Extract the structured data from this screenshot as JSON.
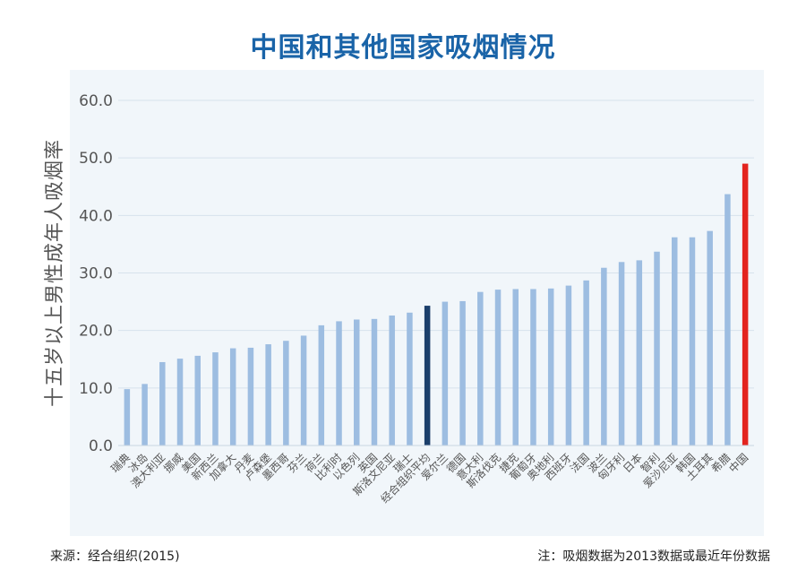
{
  "title": "中国和其他国家吸烟情况",
  "source": "来源：经合组织(2015)",
  "note": "注：吸烟数据为2013数据或最近年份数据",
  "colors": {
    "default": "#9dbde1",
    "oecd": "#1b3f6b",
    "china": "#e3241f",
    "title": "#1a64a8"
  },
  "chart_data": {
    "type": "bar",
    "title": "中国和其他国家吸烟情况",
    "xlabel": "",
    "ylabel": "十五岁以上男性成年人吸烟率",
    "ylim": [
      0,
      60
    ],
    "yticks": [
      "0.0",
      "10.0",
      "20.0",
      "30.0",
      "40.0",
      "50.0",
      "60.0"
    ],
    "grid": true,
    "categories": [
      "瑞典",
      "冰岛",
      "澳大利亚",
      "挪威",
      "美国",
      "新西兰",
      "加拿大",
      "丹麦",
      "卢森堡",
      "墨西哥",
      "芬兰",
      "荷兰",
      "比利时",
      "以色列",
      "英国",
      "斯洛文尼亚",
      "瑞士",
      "经合组织平均",
      "爱尔兰",
      "德国",
      "意大利",
      "斯洛伐克",
      "捷克",
      "葡萄牙",
      "奥地利",
      "西班牙",
      "法国",
      "波兰",
      "匈牙利",
      "日本",
      "智利",
      "爱沙尼亚",
      "韩国",
      "土耳其",
      "希腊",
      "中国"
    ],
    "values": [
      9.8,
      10.7,
      14.5,
      15.1,
      15.6,
      16.2,
      16.9,
      17.0,
      17.6,
      18.2,
      19.1,
      20.9,
      21.6,
      21.9,
      22.0,
      22.6,
      23.1,
      24.3,
      25.0,
      25.1,
      26.7,
      27.1,
      27.2,
      27.2,
      27.3,
      27.8,
      28.7,
      30.9,
      31.9,
      32.2,
      33.7,
      36.2,
      36.2,
      37.3,
      43.7,
      49.0
    ],
    "highlights": {
      "经合组织平均": "oecd",
      "中国": "china"
    }
  }
}
